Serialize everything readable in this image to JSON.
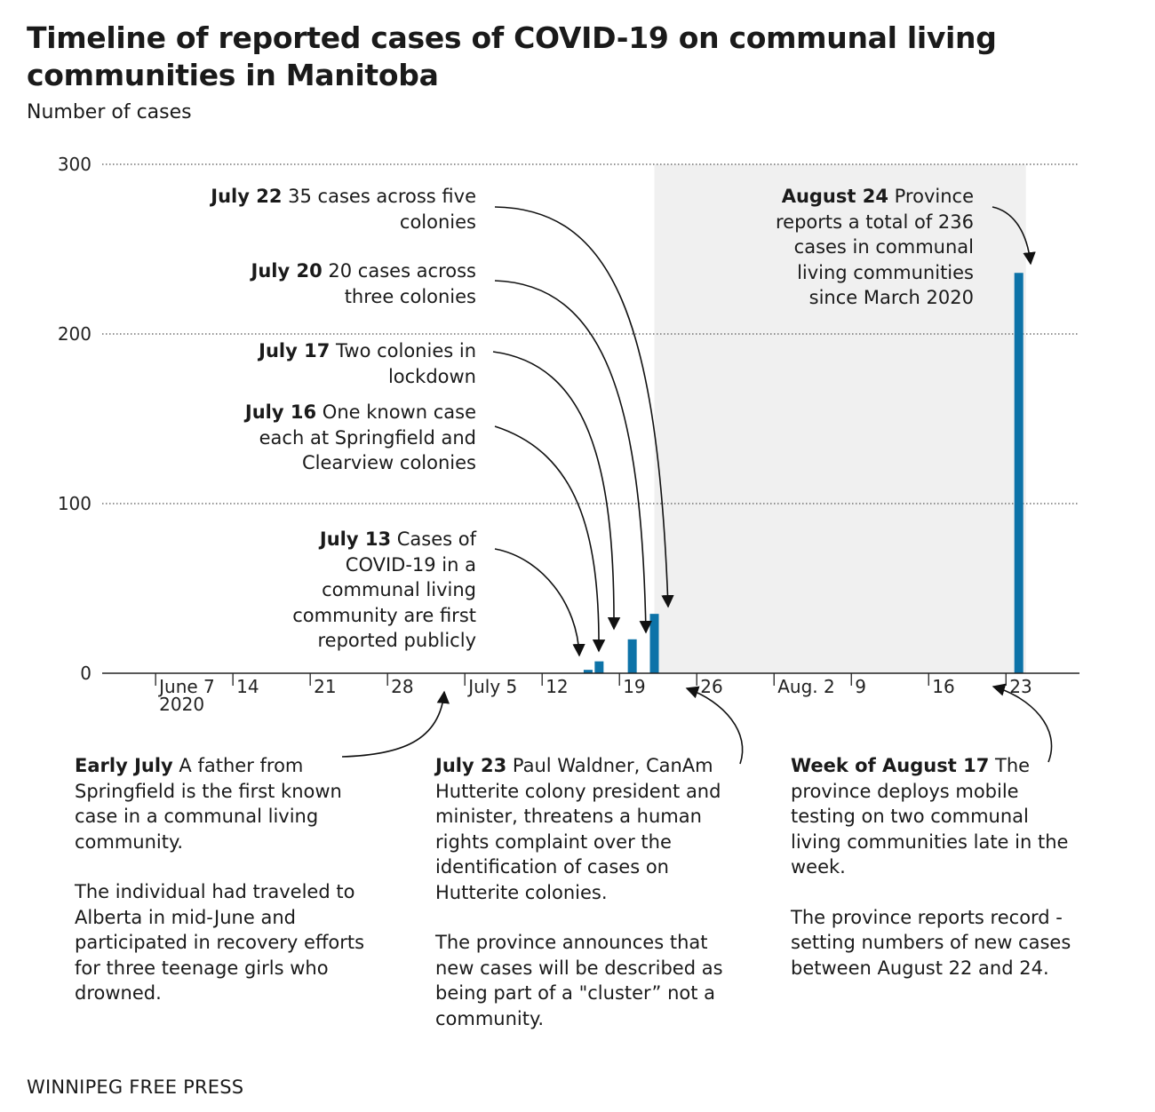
{
  "title": "Timeline of reported cases of COVID-19 on communal living communities in Manitoba",
  "subtitle": "Number of cases",
  "source": "WINNIPEG FREE PRESS",
  "colors": {
    "bar": "#0d73a8",
    "shade": "#f0f0f0",
    "grid": "#555555",
    "axis": "#222222"
  },
  "chart_data": {
    "type": "bar",
    "ylabel": "Number of cases",
    "ylim": [
      0,
      300
    ],
    "yticks": [
      0,
      100,
      200,
      300
    ],
    "xlim": [
      "2020-06-02",
      "2020-08-28"
    ],
    "shaded_range": [
      "2020-07-22",
      "2020-08-24"
    ],
    "x_ticks": [
      {
        "date": "2020-06-07",
        "label": "June 7",
        "sublabel": "2020"
      },
      {
        "date": "2020-06-14",
        "label": "14"
      },
      {
        "date": "2020-06-21",
        "label": "21"
      },
      {
        "date": "2020-06-28",
        "label": "28"
      },
      {
        "date": "2020-07-05",
        "label": "July 5"
      },
      {
        "date": "2020-07-12",
        "label": "12"
      },
      {
        "date": "2020-07-19",
        "label": "19"
      },
      {
        "date": "2020-07-26",
        "label": "26"
      },
      {
        "date": "2020-08-02",
        "label": "Aug. 2"
      },
      {
        "date": "2020-08-09",
        "label": "9"
      },
      {
        "date": "2020-08-16",
        "label": "16"
      },
      {
        "date": "2020-08-23",
        "label": "23"
      }
    ],
    "bars": [
      {
        "date": "2020-07-16",
        "value": 2
      },
      {
        "date": "2020-07-17",
        "value": 7
      },
      {
        "date": "2020-07-20",
        "value": 20
      },
      {
        "date": "2020-07-22",
        "value": 35
      },
      {
        "date": "2020-08-24",
        "value": 236
      }
    ]
  },
  "annotations": {
    "july22": {
      "date": "July 22",
      "text": "35 cases across five colonies"
    },
    "july20": {
      "date": "July 20",
      "text": "20 cases across three colonies"
    },
    "july17": {
      "date": "July 17",
      "text": "Two colonies in lockdown"
    },
    "july16": {
      "date": "July 16",
      "text": "One known case each at Springfield and Clearview colonies"
    },
    "july13": {
      "date": "July 13",
      "text": "Cases of COVID-19 in a communal living community are first reported publicly"
    },
    "aug24": {
      "date": "August 24",
      "text": "Province reports a total of 236 cases in communal living communities since March 2020"
    },
    "early_july": {
      "date": "Early July",
      "text": "A father from Springfield is the first known case in a communal living community.",
      "text2": "The individual had traveled to Alberta in mid-June and participated in recovery efforts for three teenage girls who drowned."
    },
    "july23": {
      "date": "July 23",
      "text": "Paul Waldner, CanAm Hutterite colony president and minister, threatens a human rights complaint over the identification of cases on Hutterite colonies.",
      "text2": "The province announces that new cases will be described as being part of a \"cluster” not a community."
    },
    "week_aug17": {
      "date": "Week of August 17",
      "text": "The province deploys mobile testing on two communal living communities late in the week.",
      "text2": "The province reports record -setting numbers of new cases between August 22 and 24."
    }
  }
}
